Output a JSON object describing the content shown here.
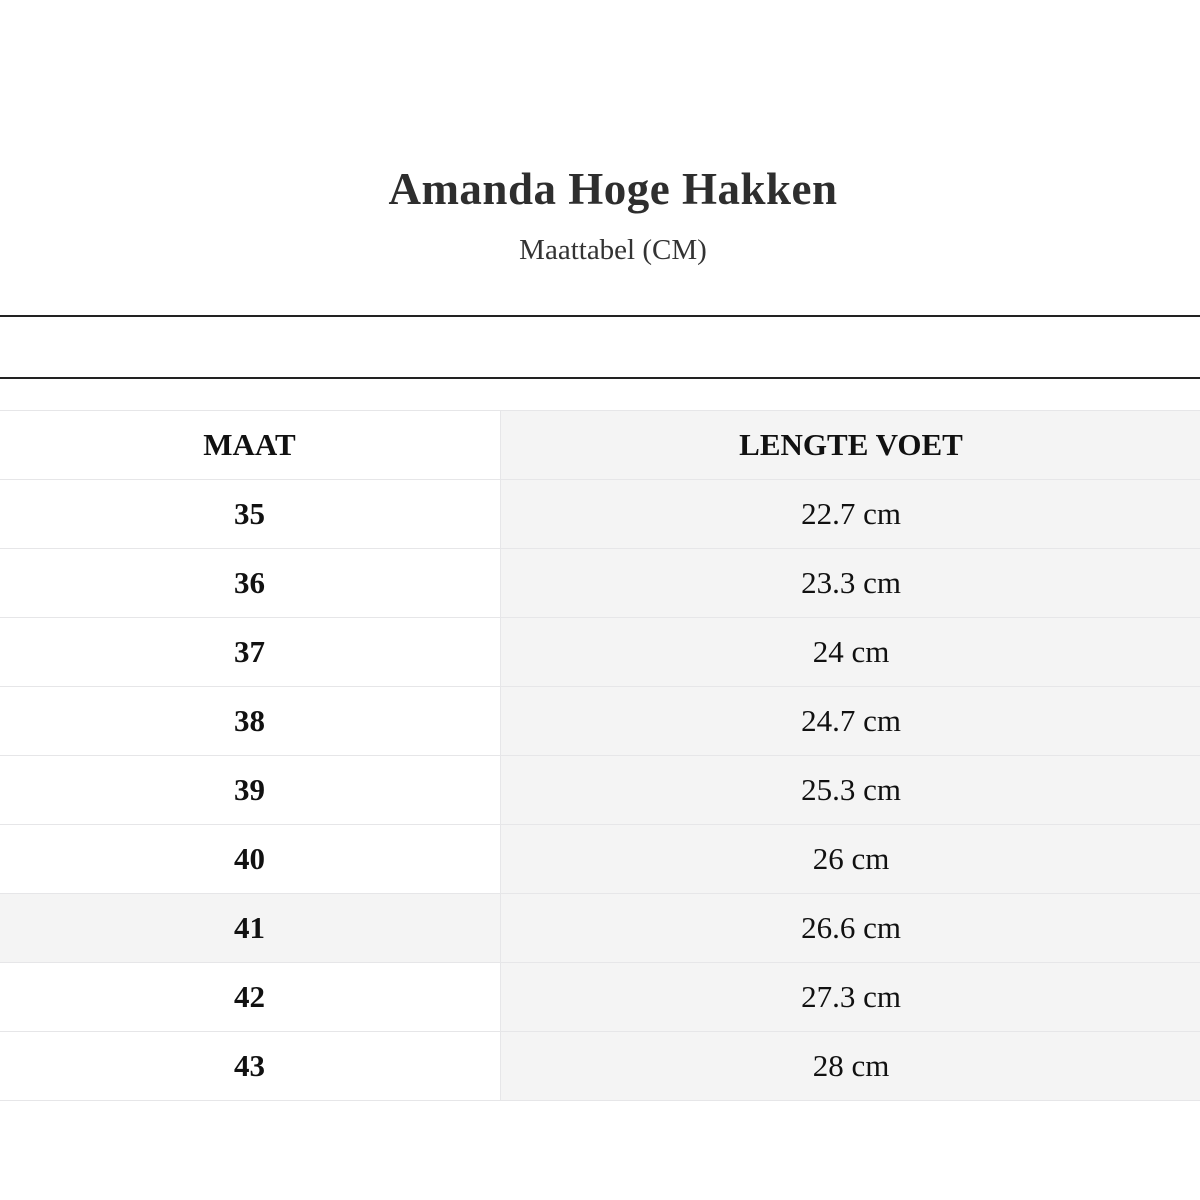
{
  "title": "Amanda Hoge Hakken",
  "subtitle": "Maattabel (CM)",
  "table": {
    "headers": [
      "MAAT",
      "LENGTE VOET"
    ],
    "rows": [
      {
        "size": "35",
        "length": "22.7 cm"
      },
      {
        "size": "36",
        "length": "23.3 cm"
      },
      {
        "size": "37",
        "length": "24 cm"
      },
      {
        "size": "38",
        "length": "24.7 cm"
      },
      {
        "size": "39",
        "length": "25.3 cm"
      },
      {
        "size": "40",
        "length": "26 cm"
      },
      {
        "size": "41",
        "length": "26.6 cm"
      },
      {
        "size": "42",
        "length": "27.3 cm"
      },
      {
        "size": "43",
        "length": "28 cm"
      }
    ]
  },
  "colors": {
    "shaded_cell": "#f4f4f4",
    "rule": "#222222",
    "border": "#e6e6e8"
  }
}
